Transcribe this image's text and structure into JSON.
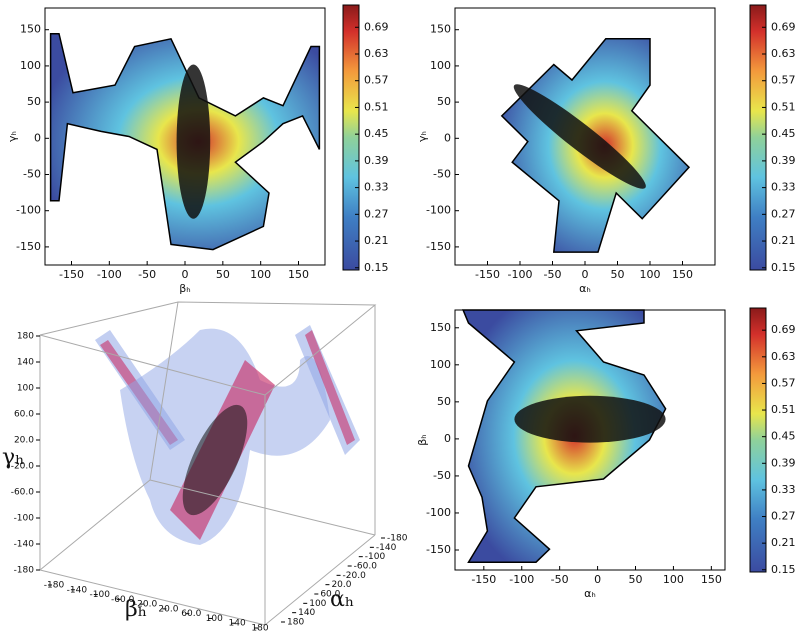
{
  "chart_data": [
    {
      "type": "contour",
      "xlabel": "βₕ",
      "ylabel": "γₕ",
      "xlim": [
        -185,
        185
      ],
      "ylim": [
        -175,
        180
      ],
      "xticks": [
        -150,
        -100,
        -50,
        0,
        50,
        100,
        150
      ],
      "yticks": [
        -150,
        -100,
        -50,
        0,
        50,
        100,
        150
      ],
      "colorbar": {
        "lim": [
          0.145,
          0.74
        ],
        "ticks": [
          0.15,
          0.21,
          0.27,
          0.33,
          0.39,
          0.45,
          0.51,
          0.57,
          0.63,
          0.69
        ]
      }
    },
    {
      "type": "contour",
      "xlabel": "αₕ",
      "ylabel": "γₕ",
      "xlim": [
        -200,
        200
      ],
      "ylim": [
        -175,
        180
      ],
      "xticks": [
        -150,
        -100,
        -50,
        0,
        50,
        100,
        150
      ],
      "yticks": [
        -150,
        -100,
        -50,
        0,
        50,
        100,
        150
      ],
      "colorbar": {
        "lim": [
          0.145,
          0.74
        ],
        "ticks": [
          0.15,
          0.21,
          0.27,
          0.33,
          0.39,
          0.45,
          0.51,
          0.57,
          0.63,
          0.69
        ]
      }
    },
    {
      "type": "surface3d",
      "xlabel": "βₕ",
      "ylabel": "αₕ",
      "zlabel": "γₕ",
      "xlim": [
        -180,
        180
      ],
      "ylim": [
        -180,
        180
      ],
      "zlim": [
        -180,
        180
      ],
      "xticks": [
        -180,
        -140,
        -100,
        {
          "value": -60,
          "label": "-60.0"
        },
        {
          "value": -20,
          "label": "-20.0"
        },
        {
          "value": 20,
          "label": "20.0"
        },
        {
          "value": 60,
          "label": "60.0"
        },
        100,
        140,
        180
      ],
      "yticks": [
        -180,
        -140,
        -100,
        {
          "value": -60,
          "label": "-60.0"
        },
        {
          "value": -20,
          "label": "-20.0"
        },
        {
          "value": 20,
          "label": "20.0"
        },
        {
          "value": 60,
          "label": "60.0"
        },
        100,
        140,
        180
      ],
      "zticks": [
        -180,
        -140,
        -100,
        {
          "value": -60,
          "label": "-60.0"
        },
        {
          "value": -20,
          "label": "-20.0"
        },
        {
          "value": 20,
          "label": "20.0"
        },
        {
          "value": 60,
          "label": "60.0"
        },
        100,
        140,
        180
      ]
    },
    {
      "type": "contour",
      "xlabel": "αₕ",
      "ylabel": "βₕ",
      "xlim": [
        -188,
        168
      ],
      "ylim": [
        -177,
        174
      ],
      "xticks": [
        -150,
        -100,
        -50,
        0,
        50,
        100,
        150
      ],
      "yticks": [
        -150,
        -100,
        -50,
        0,
        50,
        100,
        150
      ],
      "colorbar": {
        "lim": [
          0.145,
          0.74
        ],
        "ticks": [
          0.15,
          0.21,
          0.27,
          0.33,
          0.39,
          0.45,
          0.51,
          0.57,
          0.63,
          0.69
        ]
      }
    }
  ]
}
